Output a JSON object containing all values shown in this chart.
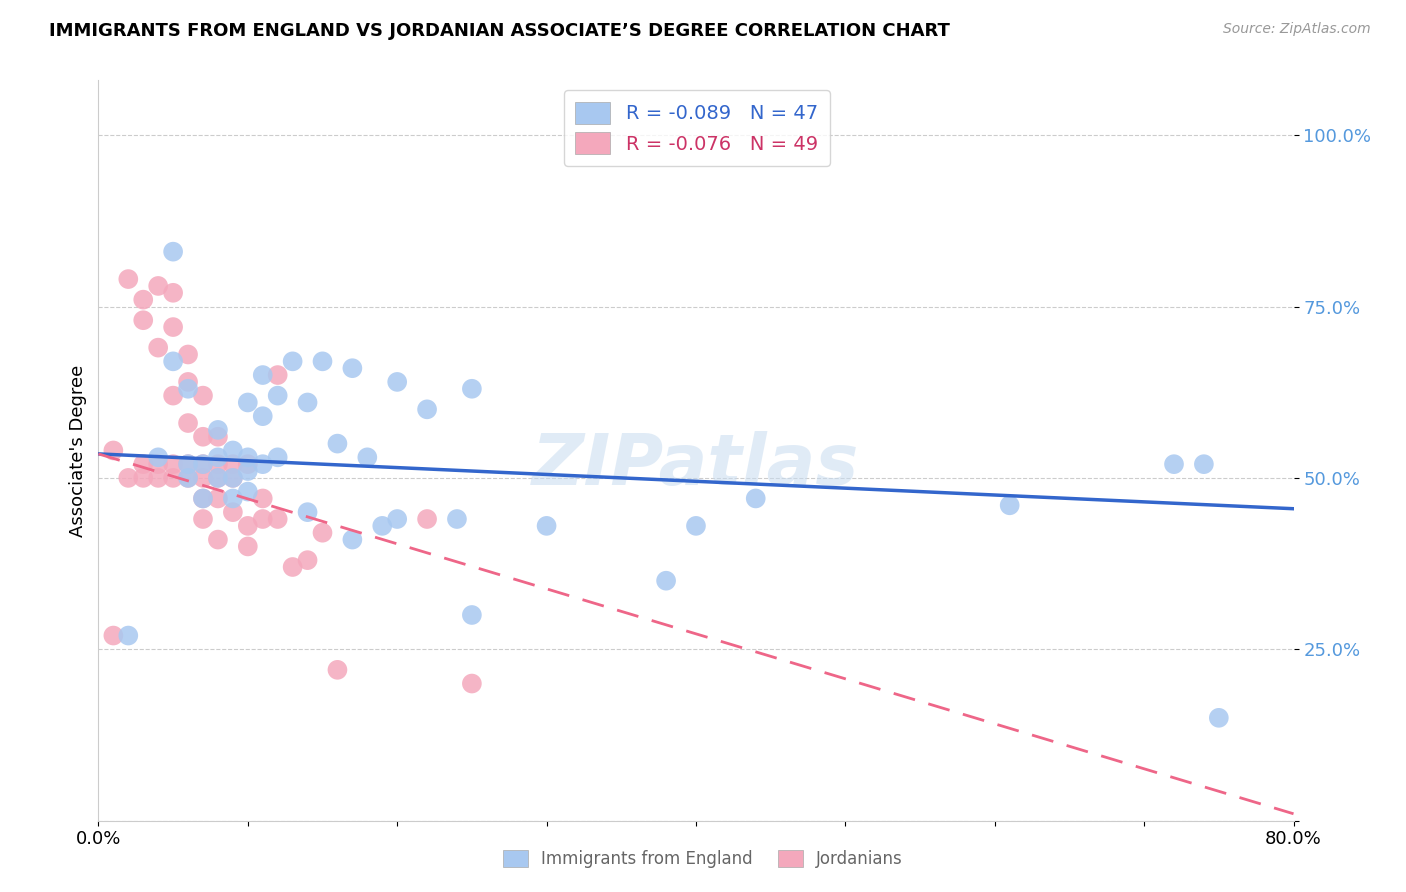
{
  "title": "IMMIGRANTS FROM ENGLAND VS JORDANIAN ASSOCIATE’S DEGREE CORRELATION CHART",
  "source": "Source: ZipAtlas.com",
  "ylabel": "Associate's Degree",
  "xlim": [
    0.0,
    0.8
  ],
  "ylim": [
    0.0,
    1.08
  ],
  "yticks": [
    0.0,
    0.25,
    0.5,
    0.75,
    1.0
  ],
  "ytick_labels": [
    "",
    "25.0%",
    "50.0%",
    "75.0%",
    "100.0%"
  ],
  "xticks": [
    0.0,
    0.1,
    0.2,
    0.3,
    0.4,
    0.5,
    0.6,
    0.7,
    0.8
  ],
  "xtick_labels": [
    "0.0%",
    "",
    "",
    "",
    "",
    "",
    "",
    "",
    "80.0%"
  ],
  "legend_blue_label": "R = -0.089   N = 47",
  "legend_pink_label": "R = -0.076   N = 49",
  "blue_color": "#A8C8F0",
  "pink_color": "#F4A8BC",
  "blue_line_color": "#3366CC",
  "pink_line_color": "#EE6688",
  "watermark": "ZIPatlas",
  "blue_scatter_x": [
    0.02,
    0.04,
    0.05,
    0.05,
    0.06,
    0.06,
    0.06,
    0.07,
    0.07,
    0.08,
    0.08,
    0.08,
    0.09,
    0.09,
    0.09,
    0.1,
    0.1,
    0.1,
    0.1,
    0.11,
    0.11,
    0.11,
    0.12,
    0.12,
    0.13,
    0.14,
    0.14,
    0.15,
    0.16,
    0.17,
    0.17,
    0.18,
    0.19,
    0.2,
    0.2,
    0.22,
    0.24,
    0.25,
    0.3,
    0.38,
    0.4,
    0.44,
    0.61,
    0.72,
    0.74,
    0.75,
    0.25
  ],
  "blue_scatter_y": [
    0.27,
    0.53,
    0.83,
    0.67,
    0.5,
    0.52,
    0.63,
    0.47,
    0.52,
    0.5,
    0.53,
    0.57,
    0.47,
    0.5,
    0.54,
    0.48,
    0.51,
    0.53,
    0.61,
    0.52,
    0.59,
    0.65,
    0.53,
    0.62,
    0.67,
    0.61,
    0.45,
    0.67,
    0.55,
    0.66,
    0.41,
    0.53,
    0.43,
    0.64,
    0.44,
    0.6,
    0.44,
    0.3,
    0.43,
    0.35,
    0.43,
    0.47,
    0.46,
    0.52,
    0.52,
    0.15,
    0.63
  ],
  "pink_scatter_x": [
    0.01,
    0.01,
    0.02,
    0.02,
    0.03,
    0.03,
    0.03,
    0.03,
    0.04,
    0.04,
    0.04,
    0.04,
    0.05,
    0.05,
    0.05,
    0.05,
    0.05,
    0.06,
    0.06,
    0.06,
    0.06,
    0.06,
    0.07,
    0.07,
    0.07,
    0.07,
    0.07,
    0.07,
    0.08,
    0.08,
    0.08,
    0.08,
    0.08,
    0.09,
    0.09,
    0.09,
    0.1,
    0.1,
    0.1,
    0.11,
    0.11,
    0.12,
    0.12,
    0.13,
    0.14,
    0.15,
    0.16,
    0.22,
    0.25
  ],
  "pink_scatter_y": [
    0.27,
    0.54,
    0.5,
    0.79,
    0.5,
    0.52,
    0.73,
    0.76,
    0.5,
    0.52,
    0.69,
    0.78,
    0.5,
    0.52,
    0.62,
    0.72,
    0.77,
    0.5,
    0.52,
    0.58,
    0.64,
    0.68,
    0.47,
    0.5,
    0.52,
    0.56,
    0.62,
    0.44,
    0.41,
    0.47,
    0.5,
    0.52,
    0.56,
    0.45,
    0.5,
    0.52,
    0.43,
    0.52,
    0.4,
    0.44,
    0.47,
    0.44,
    0.65,
    0.37,
    0.38,
    0.42,
    0.22,
    0.44,
    0.2
  ],
  "blue_line_x": [
    0.0,
    0.8
  ],
  "blue_line_y": [
    0.535,
    0.455
  ],
  "pink_line_x": [
    0.0,
    0.8
  ],
  "pink_line_y": [
    0.535,
    0.01
  ]
}
